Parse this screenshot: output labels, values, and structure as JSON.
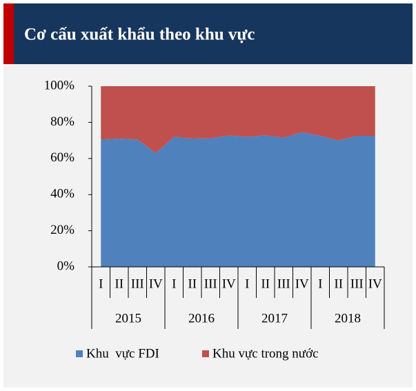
{
  "chart_data": {
    "type": "stacked_area_100",
    "title": "Cơ cấu xuất khẩu theo khu vực",
    "categories": [
      "I",
      "II",
      "III",
      "IV",
      "I",
      "II",
      "III",
      "IV",
      "I",
      "II",
      "III",
      "IV",
      "I",
      "II",
      "III",
      "IV"
    ],
    "years": [
      "2015",
      "2016",
      "2017",
      "2018"
    ],
    "series": [
      {
        "name": "Khu  vực FDI",
        "color": "#4f81bd",
        "values": [
          70.5,
          71,
          70.5,
          63,
          72,
          71,
          71.2,
          72.7,
          72,
          72.8,
          71.5,
          74.5,
          72.5,
          70,
          72.5,
          72.5
        ]
      },
      {
        "name": "Khu vực trong nước",
        "color": "#c0504d",
        "values": [
          29.5,
          29,
          29.5,
          37,
          28,
          29,
          28.8,
          27.3,
          28,
          27.2,
          28.5,
          25.5,
          27.5,
          30,
          27.5,
          27.5
        ]
      }
    ],
    "ylim": [
      0,
      100
    ],
    "yticks": [
      {
        "value": 0,
        "label": "0%"
      },
      {
        "value": 20,
        "label": "20%"
      },
      {
        "value": 40,
        "label": "40%"
      },
      {
        "value": 60,
        "label": "60%"
      },
      {
        "value": 80,
        "label": "80%"
      },
      {
        "value": 100,
        "label": "100%"
      }
    ],
    "legend": "bottom"
  }
}
